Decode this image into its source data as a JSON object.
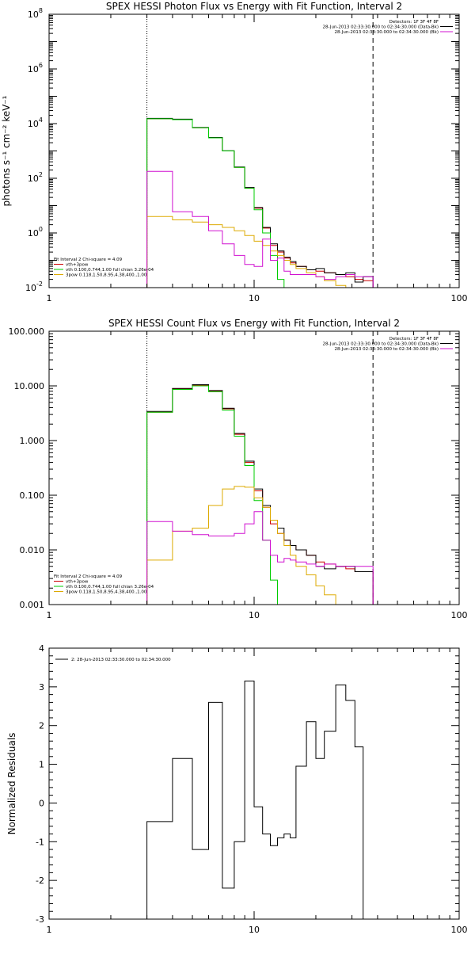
{
  "chart_data": [
    {
      "type": "line",
      "title": "SPEX HESSI Photon Flux vs Energy with Fit Function, Interval 2",
      "ylabel": "photons s⁻¹ cm⁻² keV⁻¹",
      "xlabel": "",
      "xscale": "log",
      "yscale": "log",
      "xlim": [
        1,
        100
      ],
      "ylim": [
        0.01,
        100000000
      ],
      "xticks": [
        {
          "v": 1,
          "label": "1"
        },
        {
          "v": 10,
          "label": "10"
        },
        {
          "v": 100,
          "label": "100"
        }
      ],
      "yticks": [
        {
          "v": 0.01,
          "base": "10",
          "exp": "-2"
        },
        {
          "v": 1,
          "base": "10",
          "exp": "0"
        },
        {
          "v": 100,
          "base": "10",
          "exp": "2"
        },
        {
          "v": 10000,
          "base": "10",
          "exp": "4"
        },
        {
          "v": 1000000,
          "base": "10",
          "exp": "6"
        },
        {
          "v": 100000000,
          "base": "10",
          "exp": "8"
        }
      ],
      "vlines": [
        {
          "x": 3.0,
          "style": "dotted"
        },
        {
          "x": 38.0,
          "style": "dashed"
        }
      ],
      "legend_top": [
        {
          "text": "Detectors: 1F 3F 4F 8F",
          "color": ""
        },
        {
          "text": "28-Jun-2013 02:33:30.000 to 02:34:30.000 (Data-Bk)",
          "color": "#000000"
        },
        {
          "text": "28-Jun-2013 02:33:30.000 to 02:34:30.000 (Bk)",
          "color": "#d010d0"
        }
      ],
      "legend_bottom": [
        {
          "text": "Fit Interval 2   Chi-square = 4.09",
          "color": ""
        },
        {
          "text": "vth+3pow",
          "color": "#cc0000"
        },
        {
          "text": "vth 0.100,0.744,1.00  full chian 3.26e-04",
          "color": "#00cc00"
        },
        {
          "text": "3pow 0.118,1.50,8.95,4.38,400.,1.00",
          "color": "#ddaa00"
        }
      ],
      "edges": [
        3.0,
        4.0,
        5.0,
        6.0,
        7.0,
        8.0,
        9.0,
        10.0,
        11.0,
        12.0,
        13.0,
        14.0,
        15.0,
        16.0,
        18.0,
        20.0,
        22.0,
        25.0,
        28.0,
        31.0,
        34.0,
        38.0
      ],
      "series": [
        {
          "color": "#cc0000",
          "values": [
            15000,
            14000,
            7000,
            3000,
            1000,
            250,
            45,
            8,
            1.5,
            0.35,
            0.2,
            0.12,
            0.08,
            0.06,
            0.045,
            0.04,
            0.035,
            0.03,
            0.025,
            0.02,
            0.018
          ]
        },
        {
          "color": "#000000",
          "values": [
            15500,
            14500,
            7200,
            3100,
            1020,
            260,
            46,
            8.5,
            1.6,
            0.4,
            0.22,
            0.13,
            0.09,
            0.06,
            0.045,
            0.05,
            0.035,
            0.03,
            0.035,
            0.016,
            0.025
          ]
        },
        {
          "color": "#00cc00",
          "values": [
            15000,
            14000,
            7000,
            3000,
            1000,
            250,
            43,
            7,
            1,
            0.15,
            0.02,
            0.008
          ]
        },
        {
          "color": "#ddaa00",
          "values": [
            4,
            3,
            2.5,
            2,
            1.6,
            1.2,
            0.8,
            0.5,
            0.35,
            0.22,
            0.15,
            0.1,
            0.07,
            0.05,
            0.035,
            0.025,
            0.018,
            0.012,
            0.009,
            0.007,
            0.005
          ]
        },
        {
          "color": "#d010d0",
          "values": [
            180,
            6,
            4,
            1.2,
            0.4,
            0.15,
            0.07,
            0.06,
            0.6,
            0.1,
            0.12,
            0.04,
            0.03,
            0.03,
            0.03,
            0.025,
            0.02,
            0.025,
            0.03,
            0.025,
            0.025
          ]
        }
      ]
    },
    {
      "type": "line",
      "title": "SPEX HESSI Count Flux vs Energy with Fit Function, Interval 2",
      "ylabel": "",
      "xlabel": "",
      "xscale": "log",
      "yscale": "log",
      "xlim": [
        1,
        100
      ],
      "ylim": [
        0.001,
        100
      ],
      "xticks": [
        {
          "v": 1,
          "label": "1"
        },
        {
          "v": 10,
          "label": "10"
        },
        {
          "v": 100,
          "label": "100"
        }
      ],
      "yticks": [
        {
          "v": 0.001,
          "label": "0.001"
        },
        {
          "v": 0.01,
          "label": "0.010"
        },
        {
          "v": 0.1,
          "label": "0.100"
        },
        {
          "v": 1,
          "label": "1.000"
        },
        {
          "v": 10,
          "label": "10.000"
        },
        {
          "v": 100,
          "label": "100.000"
        }
      ],
      "vlines": [
        {
          "x": 3.0,
          "style": "dotted"
        },
        {
          "x": 38.0,
          "style": "dashed"
        }
      ],
      "legend_top": [
        {
          "text": "Detectors: 1F 3F 4F 8F",
          "color": ""
        },
        {
          "text": "28-Jun-2013 02:33:30.000 to 02:34:30.000 (Data-Bk)",
          "color": "#000000"
        },
        {
          "text": "28-Jun-2013 02:33:30.000 to 02:34:30.000 (Bk)",
          "color": "#d010d0"
        }
      ],
      "legend_bottom": [
        {
          "text": "Fit Interval 2   Chi-square = 4.09",
          "color": ""
        },
        {
          "text": "vth+3pow",
          "color": "#cc0000"
        },
        {
          "text": "vth 0.100,0.744,1.00  full chian 3.26e-04",
          "color": "#00cc00"
        },
        {
          "text": "3pow 0.118,1.50,8.95,4.38,400.,1.00",
          "color": "#ddaa00"
        }
      ],
      "edges": [
        3.0,
        4.0,
        5.0,
        6.0,
        7.0,
        8.0,
        9.0,
        10.0,
        11.0,
        12.0,
        13.0,
        14.0,
        15.0,
        16.0,
        18.0,
        20.0,
        22.0,
        25.0,
        28.0,
        31.0,
        34.0,
        38.0
      ],
      "series": [
        {
          "color": "#cc0000",
          "values": [
            3.3,
            8.8,
            10.2,
            8.0,
            3.8,
            1.3,
            0.4,
            0.12,
            0.06,
            0.03,
            0.02,
            0.015,
            0.012,
            0.01,
            0.008,
            0.006,
            0.0055,
            0.005,
            0.0045,
            0.004,
            0.004
          ]
        },
        {
          "color": "#000000",
          "values": [
            3.4,
            9.0,
            10.5,
            8.2,
            3.9,
            1.35,
            0.42,
            0.13,
            0.065,
            0.035,
            0.025,
            0.015,
            0.012,
            0.01,
            0.008,
            0.005,
            0.0045,
            0.005,
            0.005,
            0.004,
            0.004
          ]
        },
        {
          "color": "#00cc00",
          "values": [
            3.3,
            8.6,
            10.0,
            7.8,
            3.6,
            1.2,
            0.35,
            0.08,
            0.015,
            0.0028,
            0.001
          ]
        },
        {
          "color": "#ddaa00",
          "values": [
            0.0065,
            0.022,
            0.025,
            0.065,
            0.13,
            0.145,
            0.14,
            0.09,
            0.06,
            0.035,
            0.02,
            0.012,
            0.008,
            0.005,
            0.0035,
            0.0022,
            0.0015,
            0.001
          ]
        },
        {
          "color": "#d010d0",
          "values": [
            0.033,
            0.022,
            0.019,
            0.018,
            0.018,
            0.02,
            0.03,
            0.05,
            0.015,
            0.008,
            0.006,
            0.007,
            0.0065,
            0.006,
            0.0055,
            0.005,
            0.0055,
            0.005,
            0.005,
            0.005,
            0.005
          ]
        }
      ]
    },
    {
      "type": "line",
      "title": "",
      "ylabel": "Normalized Residuals",
      "xlabel": "",
      "xscale": "log",
      "yscale": "linear",
      "xlim": [
        1,
        100
      ],
      "ylim": [
        -3,
        4
      ],
      "xticks": [
        {
          "v": 1,
          "label": "1"
        },
        {
          "v": 10,
          "label": "10"
        },
        {
          "v": 100,
          "label": "100"
        }
      ],
      "yticks": [
        {
          "v": -3,
          "label": "-3"
        },
        {
          "v": -2,
          "label": "-2"
        },
        {
          "v": -1,
          "label": "-1"
        },
        {
          "v": 0,
          "label": "0"
        },
        {
          "v": 1,
          "label": "1"
        },
        {
          "v": 2,
          "label": "2"
        },
        {
          "v": 3,
          "label": "3"
        },
        {
          "v": 4,
          "label": "4"
        }
      ],
      "vlines": [],
      "legend_top": [
        {
          "text": "2: 28-Jun-2013 02:33:30.000 to 02:34:30.000",
          "color": "#000000"
        }
      ],
      "legend_bottom": [],
      "edges": [
        3.0,
        4.0,
        5.0,
        6.0,
        7.0,
        8.0,
        9.0,
        10.0,
        11.0,
        12.0,
        13.0,
        14.0,
        15.0,
        16.0,
        18.0,
        20.0,
        22.0,
        25.0,
        28.0,
        31.0,
        34.0,
        38.0
      ],
      "series": [
        {
          "color": "#000000",
          "drop_to_bottom": true,
          "values": [
            -0.48,
            1.15,
            -1.2,
            2.6,
            -2.2,
            -1.0,
            3.15,
            -0.1,
            -0.8,
            -1.1,
            -0.9,
            -0.8,
            -0.9,
            0.95,
            2.1,
            1.15,
            1.85,
            3.05,
            2.65,
            1.45
          ]
        }
      ]
    }
  ]
}
